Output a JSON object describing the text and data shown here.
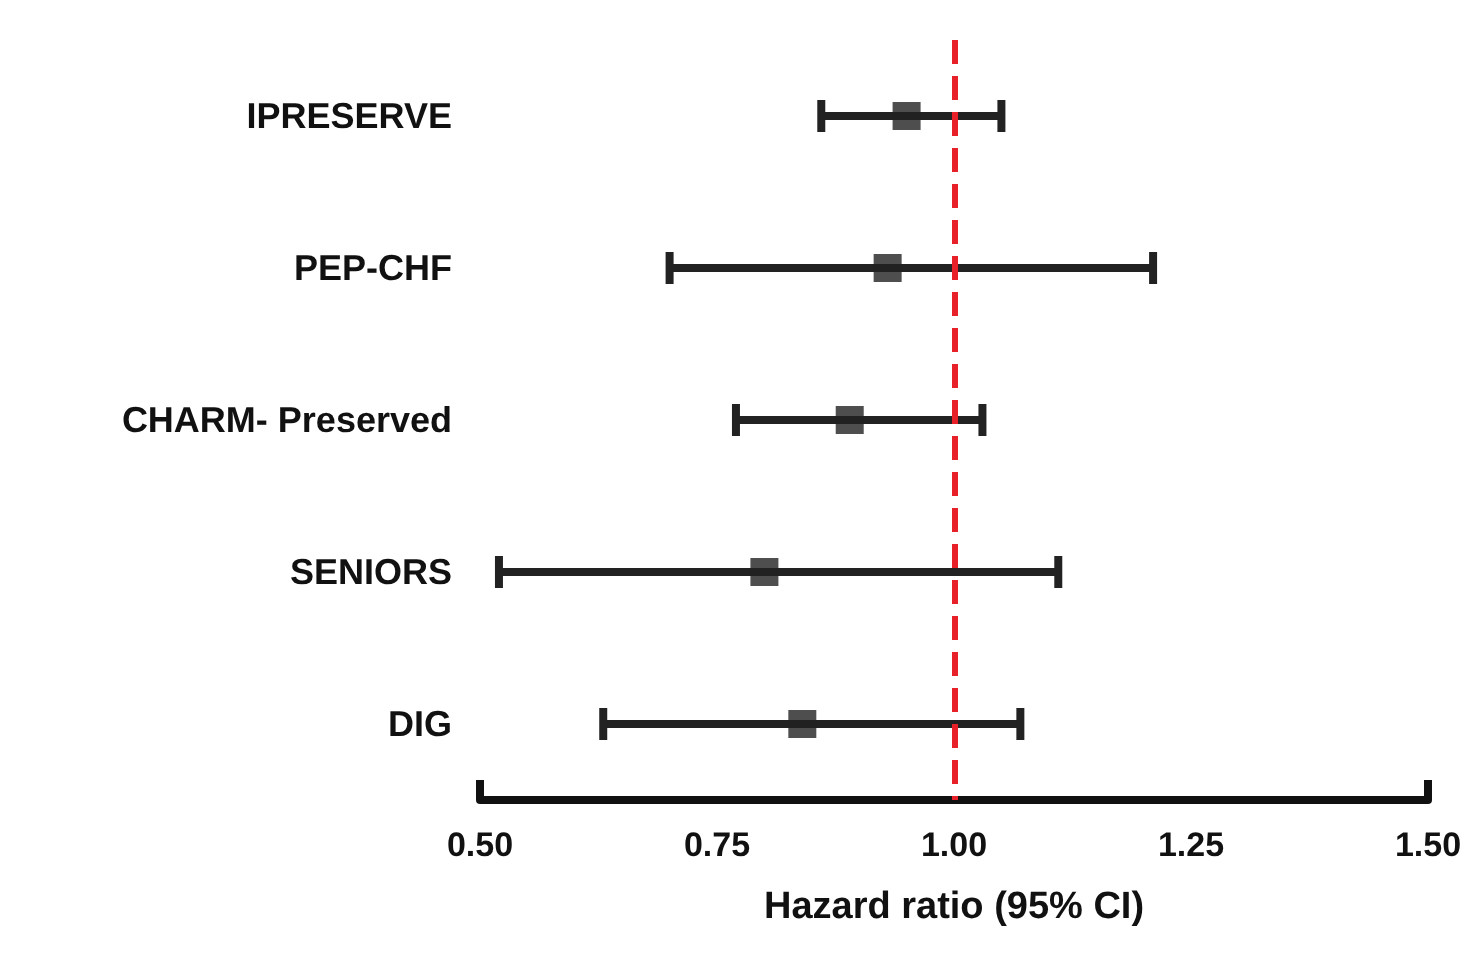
{
  "chart_data": {
    "type": "scatter",
    "orientation": "horizontal",
    "xlabel": "Hazard ratio (95% CI)",
    "categories": [
      "IPRESERVE",
      "PEP-CHF",
      "CHARM- Preserved",
      "SENIORS",
      "DIG"
    ],
    "values": [
      0.95,
      0.93,
      0.89,
      0.8,
      0.84
    ],
    "errors": [
      [
        0.86,
        1.05
      ],
      [
        0.7,
        1.21
      ],
      [
        0.77,
        1.03
      ],
      [
        0.52,
        1.11
      ],
      [
        0.63,
        1.07
      ]
    ],
    "color": "#222222",
    "marker": "square",
    "xlim": [
      0.5,
      1.5
    ],
    "xticks": [
      {
        "value": 0.5,
        "label": "0.50"
      },
      {
        "value": 0.75,
        "label": "0.75"
      },
      {
        "value": 1.0,
        "label": "1.00"
      },
      {
        "value": 1.25,
        "label": "1.25"
      },
      {
        "value": 1.5,
        "label": "1.50"
      }
    ],
    "ref_lines": [
      {
        "axis": "x",
        "value": 1.0,
        "color": "#e8202a",
        "line_style": "dashed"
      }
    ],
    "grid": false
  }
}
